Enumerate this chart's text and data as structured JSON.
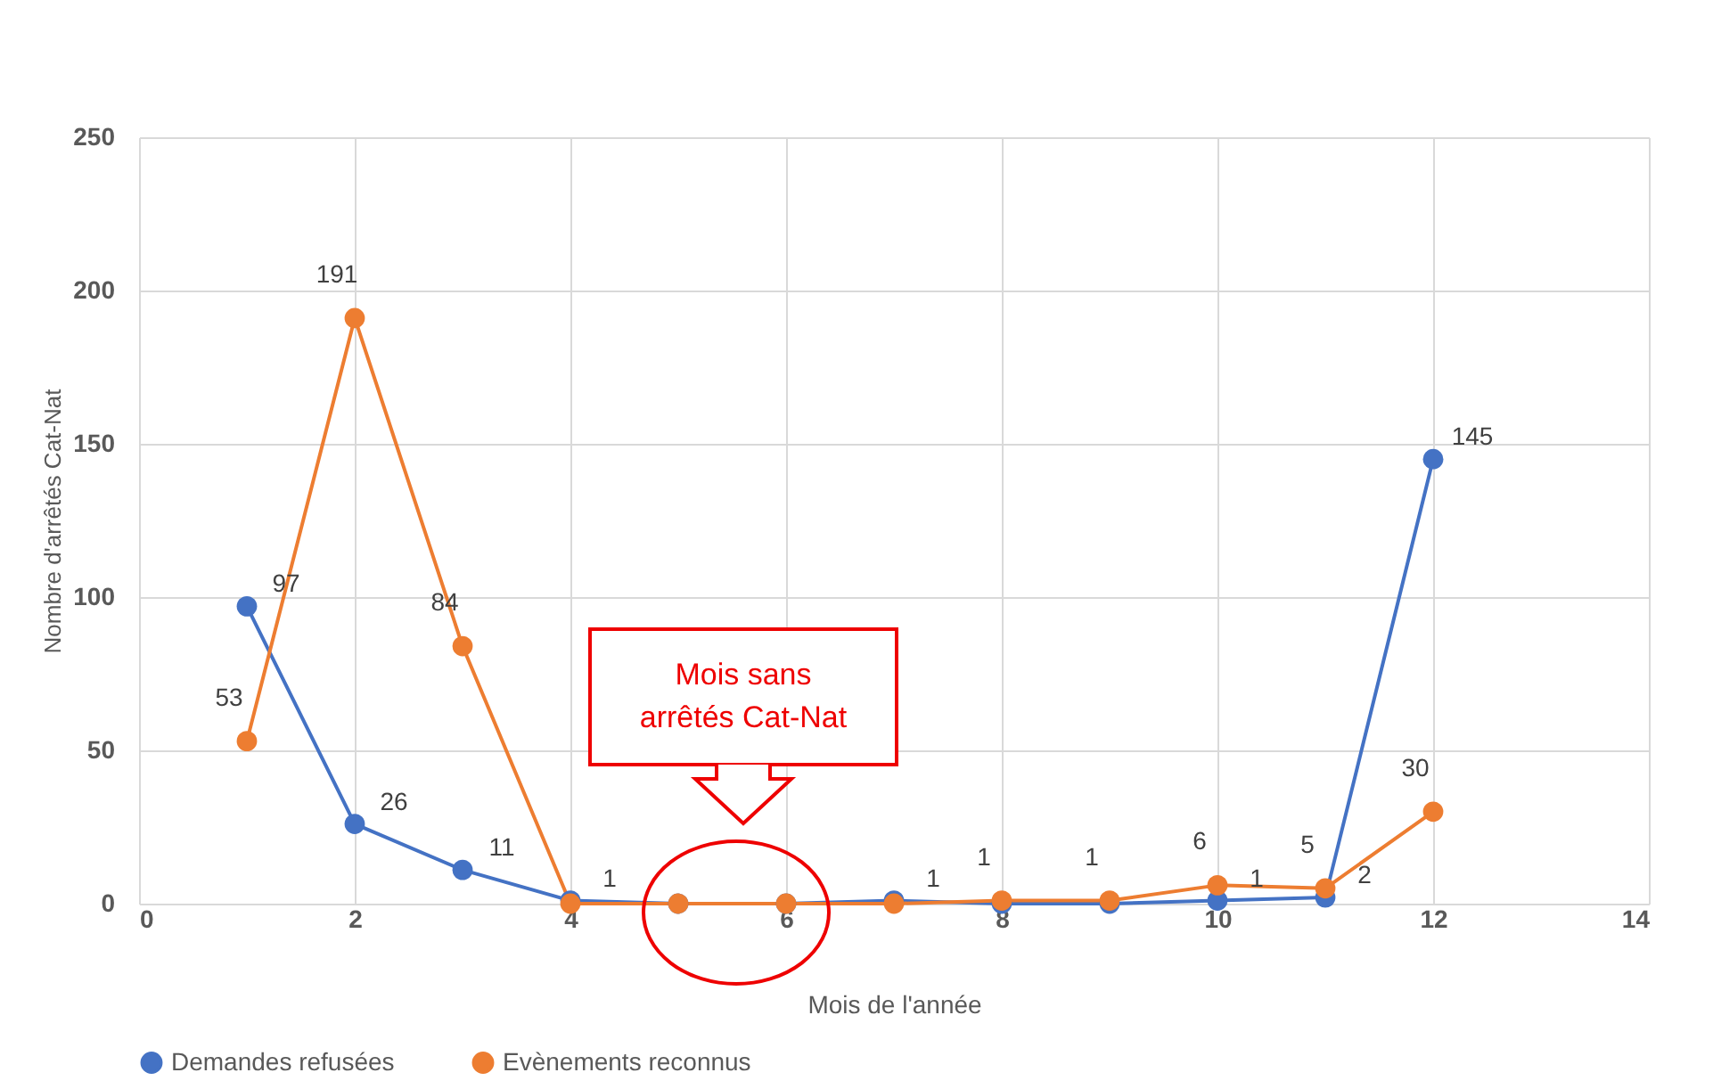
{
  "chart_data": {
    "type": "line",
    "xlabel": "Mois de l'année",
    "ylabel": "Nombre d'arrêtés Cat-Nat",
    "x": [
      1,
      2,
      3,
      4,
      5,
      6,
      7,
      8,
      9,
      10,
      11,
      12
    ],
    "series": [
      {
        "name": "Demandes refusées",
        "color": "#4472c4",
        "values": [
          97,
          26,
          11,
          1,
          0,
          0,
          1,
          0,
          0,
          1,
          2,
          145
        ],
        "value_labels": [
          "97",
          "26",
          "11",
          "1",
          null,
          null,
          "1",
          null,
          null,
          "1",
          "2",
          "145"
        ]
      },
      {
        "name": "Evènements reconnus",
        "color": "#ed7d31",
        "values": [
          53,
          191,
          84,
          0,
          0,
          0,
          0,
          1,
          1,
          6,
          5,
          30
        ],
        "value_labels": [
          "53",
          "191",
          "84",
          null,
          null,
          null,
          null,
          "1",
          "1",
          "6",
          "5",
          "30"
        ]
      }
    ],
    "xlim": [
      0,
      14
    ],
    "xticks": [
      0,
      2,
      4,
      6,
      8,
      10,
      12,
      14
    ],
    "ylim": [
      0,
      250
    ],
    "yticks": [
      0,
      50,
      100,
      150,
      200,
      250
    ],
    "grid": true,
    "legend": "bottom",
    "marker": "circle",
    "line_style": "solid",
    "annotations": [
      "Mois sans arrêtés Cat-Nat"
    ]
  }
}
